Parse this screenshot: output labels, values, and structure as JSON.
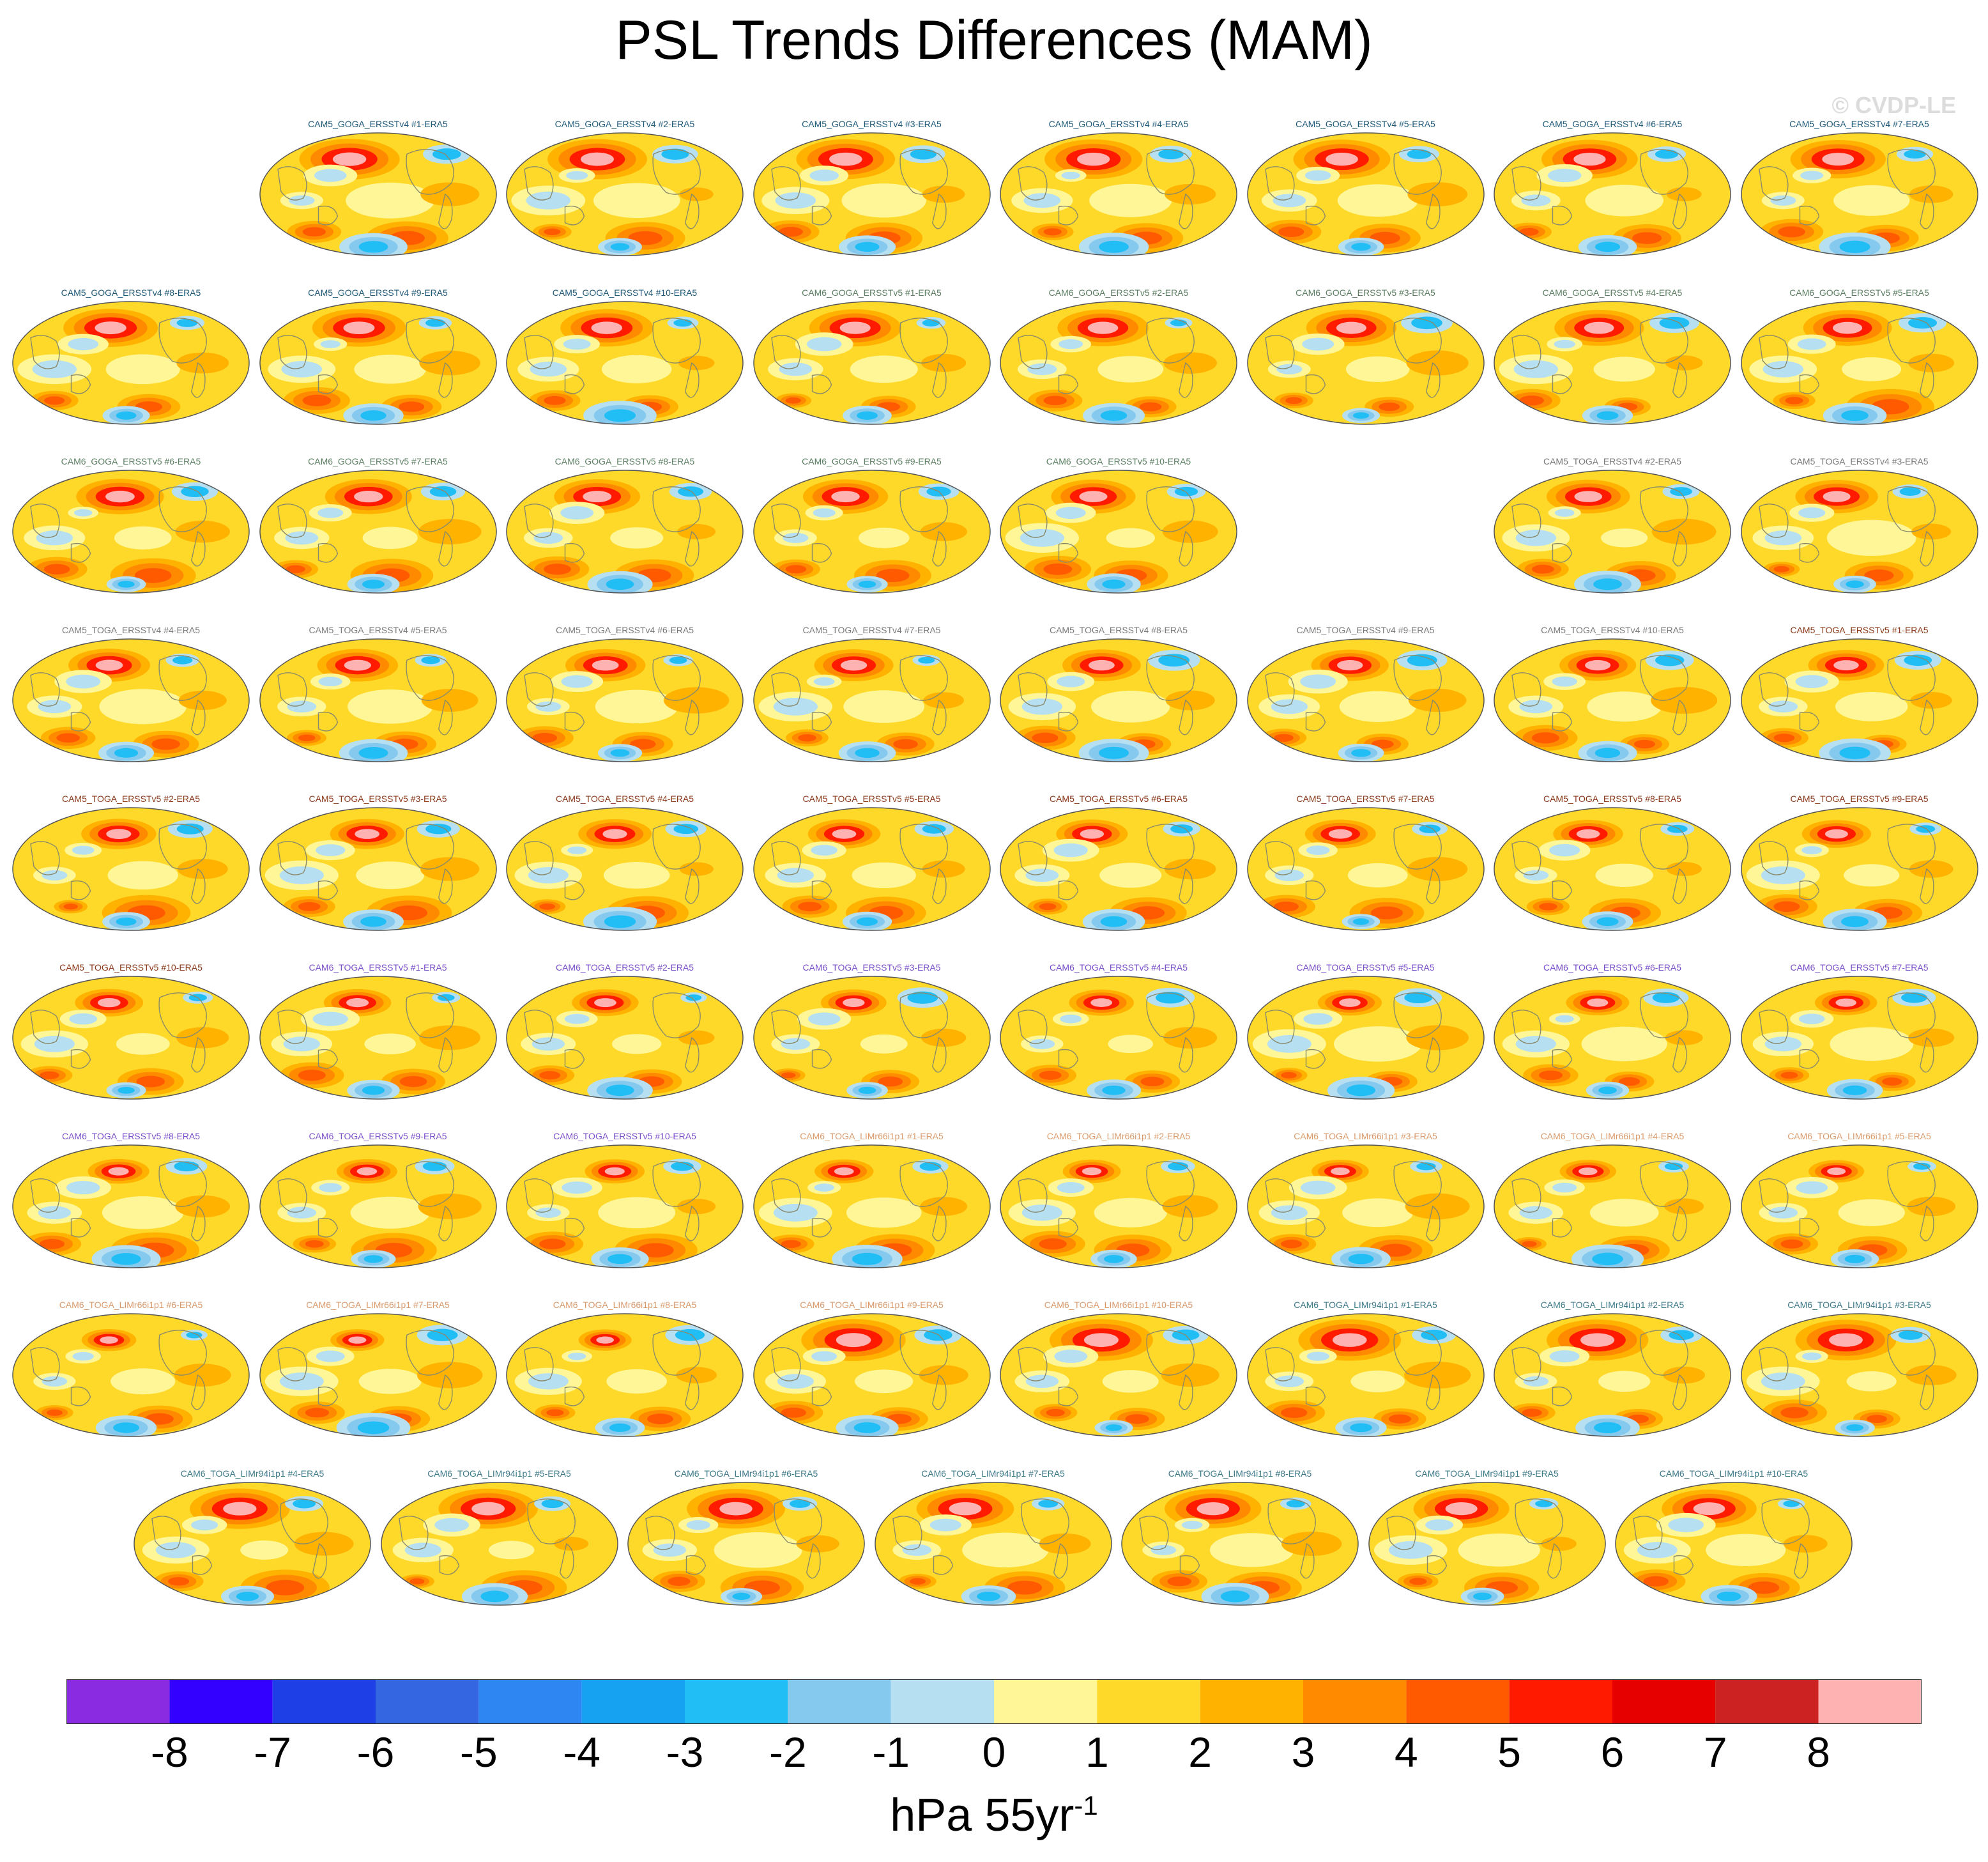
{
  "title": "PSL Trends Differences (MAM)",
  "watermark": "© CVDP-LE",
  "units": {
    "base": "hPa 55yr",
    "exponent": "-1"
  },
  "colorbar": {
    "ticks": [
      "-8",
      "-7",
      "-6",
      "-5",
      "-4",
      "-3",
      "-2",
      "-1",
      "0",
      "1",
      "2",
      "3",
      "4",
      "5",
      "6",
      "7",
      "8"
    ],
    "colors": [
      "#8a2be2",
      "#3300ff",
      "#1f3fe6",
      "#3366e0",
      "#2e86f2",
      "#16a2f0",
      "#21bef6",
      "#86c9ee",
      "#b6dff2",
      "#fff797",
      "#ffd92a",
      "#ffb300",
      "#ff8a00",
      "#ff5a00",
      "#ff1a00",
      "#e60000",
      "#cc2222",
      "#ffb2b2"
    ]
  },
  "chart_data": {
    "type": "heatmap",
    "title": "PSL Trends Differences (MAM)",
    "variable": "PSL",
    "season": "MAM",
    "units": "hPa 55yr-1",
    "colorbar_range": [
      -8,
      8
    ],
    "colorbar_interval": 1,
    "panels": [
      {
        "label": "CAM5_GOGA_ERSSTv4 #1-ERA5",
        "group": "CAM5_GOGA_ERSSTv4",
        "color": "#1f5a7a"
      },
      {
        "label": "CAM5_GOGA_ERSSTv4 #2-ERA5",
        "group": "CAM5_GOGA_ERSSTv4",
        "color": "#1f5a7a"
      },
      {
        "label": "CAM5_GOGA_ERSSTv4 #3-ERA5",
        "group": "CAM5_GOGA_ERSSTv4",
        "color": "#1f5a7a"
      },
      {
        "label": "CAM5_GOGA_ERSSTv4 #4-ERA5",
        "group": "CAM5_GOGA_ERSSTv4",
        "color": "#1f5a7a"
      },
      {
        "label": "CAM5_GOGA_ERSSTv4 #5-ERA5",
        "group": "CAM5_GOGA_ERSSTv4",
        "color": "#1f5a7a"
      },
      {
        "label": "CAM5_GOGA_ERSSTv4 #6-ERA5",
        "group": "CAM5_GOGA_ERSSTv4",
        "color": "#1f5a7a"
      },
      {
        "label": "CAM5_GOGA_ERSSTv4 #7-ERA5",
        "group": "CAM5_GOGA_ERSSTv4",
        "color": "#1f5a7a"
      },
      {
        "label": "CAM5_GOGA_ERSSTv4 #8-ERA5",
        "group": "CAM5_GOGA_ERSSTv4",
        "color": "#1f5a7a"
      },
      {
        "label": "CAM5_GOGA_ERSSTv4 #9-ERA5",
        "group": "CAM5_GOGA_ERSSTv4",
        "color": "#1f5a7a"
      },
      {
        "label": "CAM5_GOGA_ERSSTv4 #10-ERA5",
        "group": "CAM5_GOGA_ERSSTv4",
        "color": "#1f5a7a"
      },
      {
        "label": "CAM6_GOGA_ERSSTv5 #1-ERA5",
        "group": "CAM6_GOGA_ERSSTv5",
        "color": "#5b7f62"
      },
      {
        "label": "CAM6_GOGA_ERSSTv5 #2-ERA5",
        "group": "CAM6_GOGA_ERSSTv5",
        "color": "#5b7f62"
      },
      {
        "label": "CAM6_GOGA_ERSSTv5 #3-ERA5",
        "group": "CAM6_GOGA_ERSSTv5",
        "color": "#5b7f62"
      },
      {
        "label": "CAM6_GOGA_ERSSTv5 #4-ERA5",
        "group": "CAM6_GOGA_ERSSTv5",
        "color": "#5b7f62"
      },
      {
        "label": "CAM6_GOGA_ERSSTv5 #5-ERA5",
        "group": "CAM6_GOGA_ERSSTv5",
        "color": "#5b7f62"
      },
      {
        "label": "CAM6_GOGA_ERSSTv5 #6-ERA5",
        "group": "CAM6_GOGA_ERSSTv5",
        "color": "#5b7f62"
      },
      {
        "label": "CAM6_GOGA_ERSSTv5 #7-ERA5",
        "group": "CAM6_GOGA_ERSSTv5",
        "color": "#5b7f62"
      },
      {
        "label": "CAM6_GOGA_ERSSTv5 #8-ERA5",
        "group": "CAM6_GOGA_ERSSTv5",
        "color": "#5b7f62"
      },
      {
        "label": "CAM6_GOGA_ERSSTv5 #9-ERA5",
        "group": "CAM6_GOGA_ERSSTv5",
        "color": "#5b7f62"
      },
      {
        "label": "CAM6_GOGA_ERSSTv5 #10-ERA5",
        "group": "CAM6_GOGA_ERSSTv5",
        "color": "#5b7f62"
      },
      {
        "label": "CAM5_TOGA_ERSSTv4 #2-ERA5",
        "group": "CAM5_TOGA_ERSSTv4",
        "color": "#7a7a7a"
      },
      {
        "label": "CAM5_TOGA_ERSSTv4 #3-ERA5",
        "group": "CAM5_TOGA_ERSSTv4",
        "color": "#7a7a7a"
      },
      {
        "label": "CAM5_TOGA_ERSSTv4 #4-ERA5",
        "group": "CAM5_TOGA_ERSSTv4",
        "color": "#7a7a7a"
      },
      {
        "label": "CAM5_TOGA_ERSSTv4 #5-ERA5",
        "group": "CAM5_TOGA_ERSSTv4",
        "color": "#7a7a7a"
      },
      {
        "label": "CAM5_TOGA_ERSSTv4 #6-ERA5",
        "group": "CAM5_TOGA_ERSSTv4",
        "color": "#7a7a7a"
      },
      {
        "label": "CAM5_TOGA_ERSSTv4 #7-ERA5",
        "group": "CAM5_TOGA_ERSSTv4",
        "color": "#7a7a7a"
      },
      {
        "label": "CAM5_TOGA_ERSSTv4 #8-ERA5",
        "group": "CAM5_TOGA_ERSSTv4",
        "color": "#7a7a7a"
      },
      {
        "label": "CAM5_TOGA_ERSSTv4 #9-ERA5",
        "group": "CAM5_TOGA_ERSSTv4",
        "color": "#7a7a7a"
      },
      {
        "label": "CAM5_TOGA_ERSSTv4 #10-ERA5",
        "group": "CAM5_TOGA_ERSSTv4",
        "color": "#7a7a7a"
      },
      {
        "label": "CAM5_TOGA_ERSSTv5 #1-ERA5",
        "group": "CAM5_TOGA_ERSSTv5",
        "color": "#8b3a1a"
      },
      {
        "label": "CAM5_TOGA_ERSSTv5 #2-ERA5",
        "group": "CAM5_TOGA_ERSSTv5",
        "color": "#8b3a1a"
      },
      {
        "label": "CAM5_TOGA_ERSSTv5 #3-ERA5",
        "group": "CAM5_TOGA_ERSSTv5",
        "color": "#8b3a1a"
      },
      {
        "label": "CAM5_TOGA_ERSSTv5 #4-ERA5",
        "group": "CAM5_TOGA_ERSSTv5",
        "color": "#8b3a1a"
      },
      {
        "label": "CAM5_TOGA_ERSSTv5 #5-ERA5",
        "group": "CAM5_TOGA_ERSSTv5",
        "color": "#8b3a1a"
      },
      {
        "label": "CAM5_TOGA_ERSSTv5 #6-ERA5",
        "group": "CAM5_TOGA_ERSSTv5",
        "color": "#8b3a1a"
      },
      {
        "label": "CAM5_TOGA_ERSSTv5 #7-ERA5",
        "group": "CAM5_TOGA_ERSSTv5",
        "color": "#8b3a1a"
      },
      {
        "label": "CAM5_TOGA_ERSSTv5 #8-ERA5",
        "group": "CAM5_TOGA_ERSSTv5",
        "color": "#8b3a1a"
      },
      {
        "label": "CAM5_TOGA_ERSSTv5 #9-ERA5",
        "group": "CAM5_TOGA_ERSSTv5",
        "color": "#8b3a1a"
      },
      {
        "label": "CAM5_TOGA_ERSSTv5 #10-ERA5",
        "group": "CAM5_TOGA_ERSSTv5",
        "color": "#8b3a1a"
      },
      {
        "label": "CAM6_TOGA_ERSSTv5 #1-ERA5",
        "group": "CAM6_TOGA_ERSSTv5",
        "color": "#7a4fc9"
      },
      {
        "label": "CAM6_TOGA_ERSSTv5 #2-ERA5",
        "group": "CAM6_TOGA_ERSSTv5",
        "color": "#7a4fc9"
      },
      {
        "label": "CAM6_TOGA_ERSSTv5 #3-ERA5",
        "group": "CAM6_TOGA_ERSSTv5",
        "color": "#7a4fc9"
      },
      {
        "label": "CAM6_TOGA_ERSSTv5 #4-ERA5",
        "group": "CAM6_TOGA_ERSSTv5",
        "color": "#7a4fc9"
      },
      {
        "label": "CAM6_TOGA_ERSSTv5 #5-ERA5",
        "group": "CAM6_TOGA_ERSSTv5",
        "color": "#7a4fc9"
      },
      {
        "label": "CAM6_TOGA_ERSSTv5 #6-ERA5",
        "group": "CAM6_TOGA_ERSSTv5",
        "color": "#7a4fc9"
      },
      {
        "label": "CAM6_TOGA_ERSSTv5 #7-ERA5",
        "group": "CAM6_TOGA_ERSSTv5",
        "color": "#7a4fc9"
      },
      {
        "label": "CAM6_TOGA_ERSSTv5 #8-ERA5",
        "group": "CAM6_TOGA_ERSSTv5",
        "color": "#7a4fc9"
      },
      {
        "label": "CAM6_TOGA_ERSSTv5 #9-ERA5",
        "group": "CAM6_TOGA_ERSSTv5",
        "color": "#7a4fc9"
      },
      {
        "label": "CAM6_TOGA_ERSSTv5 #10-ERA5",
        "group": "CAM6_TOGA_ERSSTv5",
        "color": "#7a4fc9"
      },
      {
        "label": "CAM6_TOGA_LIMr66i1p1 #1-ERA5",
        "group": "CAM6_TOGA_LIMr66i1p1",
        "color": "#d99a6c"
      },
      {
        "label": "CAM6_TOGA_LIMr66i1p1 #2-ERA5",
        "group": "CAM6_TOGA_LIMr66i1p1",
        "color": "#d99a6c"
      },
      {
        "label": "CAM6_TOGA_LIMr66i1p1 #3-ERA5",
        "group": "CAM6_TOGA_LIMr66i1p1",
        "color": "#d99a6c"
      },
      {
        "label": "CAM6_TOGA_LIMr66i1p1 #4-ERA5",
        "group": "CAM6_TOGA_LIMr66i1p1",
        "color": "#d99a6c"
      },
      {
        "label": "CAM6_TOGA_LIMr66i1p1 #5-ERA5",
        "group": "CAM6_TOGA_LIMr66i1p1",
        "color": "#d99a6c"
      },
      {
        "label": "CAM6_TOGA_LIMr66i1p1 #6-ERA5",
        "group": "CAM6_TOGA_LIMr66i1p1",
        "color": "#d99a6c"
      },
      {
        "label": "CAM6_TOGA_LIMr66i1p1 #7-ERA5",
        "group": "CAM6_TOGA_LIMr66i1p1",
        "color": "#d99a6c"
      },
      {
        "label": "CAM6_TOGA_LIMr66i1p1 #8-ERA5",
        "group": "CAM6_TOGA_LIMr66i1p1",
        "color": "#d99a6c"
      },
      {
        "label": "CAM6_TOGA_LIMr66i1p1 #9-ERA5",
        "group": "CAM6_TOGA_LIMr66i1p1",
        "color": "#d99a6c"
      },
      {
        "label": "CAM6_TOGA_LIMr66i1p1 #10-ERA5",
        "group": "CAM6_TOGA_LIMr66i1p1",
        "color": "#d99a6c"
      },
      {
        "label": "CAM6_TOGA_LIMr94i1p1 #1-ERA5",
        "group": "CAM6_TOGA_LIMr94i1p1",
        "color": "#3d7a8a"
      },
      {
        "label": "CAM6_TOGA_LIMr94i1p1 #2-ERA5",
        "group": "CAM6_TOGA_LIMr94i1p1",
        "color": "#3d7a8a"
      },
      {
        "label": "CAM6_TOGA_LIMr94i1p1 #3-ERA5",
        "group": "CAM6_TOGA_LIMr94i1p1",
        "color": "#3d7a8a"
      },
      {
        "label": "CAM6_TOGA_LIMr94i1p1 #4-ERA5",
        "group": "CAM6_TOGA_LIMr94i1p1",
        "color": "#3d7a8a"
      },
      {
        "label": "CAM6_TOGA_LIMr94i1p1 #5-ERA5",
        "group": "CAM6_TOGA_LIMr94i1p1",
        "color": "#3d7a8a"
      },
      {
        "label": "CAM6_TOGA_LIMr94i1p1 #6-ERA5",
        "group": "CAM6_TOGA_LIMr94i1p1",
        "color": "#3d7a8a"
      },
      {
        "label": "CAM6_TOGA_LIMr94i1p1 #7-ERA5",
        "group": "CAM6_TOGA_LIMr94i1p1",
        "color": "#3d7a8a"
      },
      {
        "label": "CAM6_TOGA_LIMr94i1p1 #8-ERA5",
        "group": "CAM6_TOGA_LIMr94i1p1",
        "color": "#3d7a8a"
      },
      {
        "label": "CAM6_TOGA_LIMr94i1p1 #9-ERA5",
        "group": "CAM6_TOGA_LIMr94i1p1",
        "color": "#3d7a8a"
      },
      {
        "label": "CAM6_TOGA_LIMr94i1p1 #10-ERA5",
        "group": "CAM6_TOGA_LIMr94i1p1",
        "color": "#3d7a8a"
      }
    ]
  }
}
